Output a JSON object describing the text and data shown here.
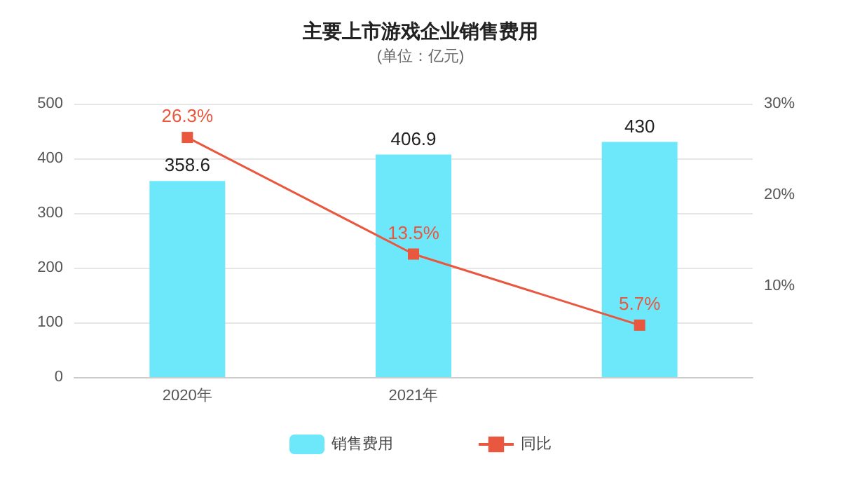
{
  "chart_data": {
    "type": "bar",
    "title": "主要上市游戏企业销售费用",
    "subtitle": "(单位：亿元)",
    "categories": [
      "2020年",
      "2021年",
      null
    ],
    "series": [
      {
        "name": "销售费用",
        "color": "#6de8fa",
        "values": [
          358.6,
          406.9,
          430
        ]
      },
      {
        "name": "同比",
        "type": "line",
        "axis": "y2",
        "color": "#e9573f",
        "values": [
          26.3,
          13.5,
          5.7
        ],
        "value_labels": [
          "26.3%",
          "13.5%",
          "5.7%"
        ]
      }
    ],
    "ylim": [
      0,
      500
    ],
    "yticks": [
      0,
      100,
      200,
      300,
      400,
      500
    ],
    "y2lim": [
      0,
      30
    ],
    "y2ticks": [
      {
        "value": 10,
        "label": "10%"
      },
      {
        "value": 20,
        "label": "20%"
      },
      {
        "value": 30,
        "label": "30%"
      }
    ],
    "data_labels": true,
    "grid": "y",
    "legend": "bottom",
    "marker": "square",
    "line_style": "solid"
  }
}
